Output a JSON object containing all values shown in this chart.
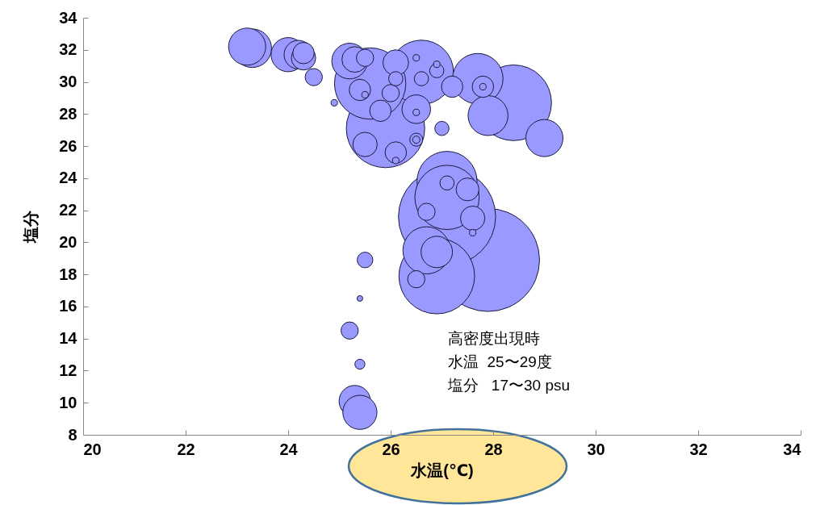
{
  "chart_data": {
    "type": "bubble",
    "xlabel": "水温(℃)",
    "ylabel": "塩分",
    "xlim": [
      20,
      34
    ],
    "ylim": [
      8,
      34
    ],
    "xticks": [
      20,
      22,
      24,
      26,
      28,
      30,
      32,
      34
    ],
    "yticks": [
      8,
      10,
      12,
      14,
      16,
      18,
      20,
      22,
      24,
      26,
      28,
      30,
      32,
      34
    ],
    "grid": false,
    "annotations": [
      "高密度出現時",
      "水温  25〜29度",
      "塩分   17〜30 psu"
    ],
    "series": [
      {
        "color": "#9999ff",
        "x": [
          27.9,
          27.1,
          28.4,
          25.9,
          26.9,
          26.6,
          25.6,
          27.1,
          27.1,
          27.7,
          26.7,
          27.9,
          29.0,
          23.3,
          23.2,
          24.0,
          24.2,
          25.2,
          26.9,
          25.3,
          25.4,
          25.3,
          26.1,
          26.5,
          24.3,
          24.3,
          27.6,
          27.5,
          25.5,
          26.1,
          25.4,
          25.8,
          27.8,
          27.2,
          24.5,
          25.5,
          26.0,
          26.7,
          26.5,
          25.2,
          25.5,
          27.1,
          26.1,
          26.6,
          26.9,
          27.0,
          26.5,
          25.4,
          26.5,
          27.8,
          26.5,
          26.9,
          26.1,
          26.5,
          25.5,
          24.9,
          27.6,
          25.4
        ],
        "values": [
          18.9,
          21.6,
          28.7,
          27.1,
          17.9,
          30.6,
          29.9,
          23.8,
          22.8,
          30.2,
          19.5,
          27.9,
          26.5,
          32.1,
          32.2,
          31.7,
          31.7,
          31.3,
          19.4,
          10.1,
          9.4,
          31.4,
          31.2,
          28.3,
          31.5,
          31.8,
          21.5,
          23.3,
          26.1,
          25.6,
          29.5,
          28.2,
          29.7,
          29.7,
          30.3,
          31.5,
          29.3,
          21.9,
          17.7,
          14.5,
          18.9,
          23.7,
          30.2,
          30.2,
          30.7,
          27.1,
          26.4,
          12.4,
          26.4,
          29.7,
          31.5,
          31.1,
          25.1,
          28.1,
          29.2,
          28.7,
          20.6,
          16.5
        ],
        "sizes": [
          1,
          0.89,
          0.54,
          0.58,
          0.54,
          0.39,
          0.48,
          0.34,
          0.39,
          0.24,
          0.21,
          0.15,
          0.13,
          0.14,
          0.13,
          0.11,
          0.077,
          0.12,
          0.093,
          0.093,
          0.11,
          0.062,
          0.062,
          0.077,
          0.056,
          0.043,
          0.056,
          0.049,
          0.056,
          0.043,
          0.043,
          0.043,
          0.043,
          0.043,
          0.028,
          0.028,
          0.028,
          0.028,
          0.028,
          0.028,
          0.023,
          0.019,
          0.019,
          0.019,
          0.019,
          0.019,
          0.016,
          0.0095,
          0.005,
          0.004,
          0.004,
          0.004,
          0.004,
          0.004,
          0.004,
          0.004,
          0.004,
          0.003
        ]
      }
    ]
  }
}
